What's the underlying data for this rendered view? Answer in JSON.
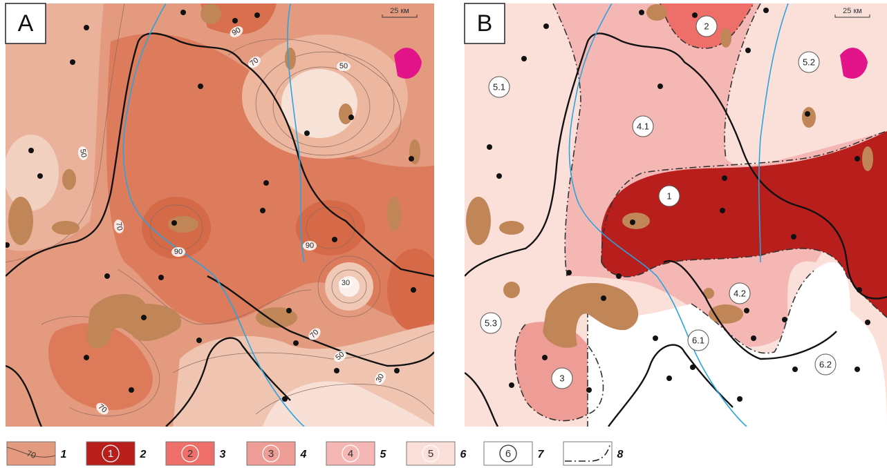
{
  "panels": [
    {
      "label": "A",
      "scale": "25 км",
      "contour_labels": [
        "90",
        "70",
        "50",
        "50",
        "70",
        "90",
        "90",
        "30",
        "70",
        "50",
        "30",
        "70"
      ]
    },
    {
      "label": "B",
      "scale": "25 км",
      "zone_labels": [
        "2",
        "5.1",
        "5.2",
        "4.1",
        "1",
        "4.2",
        "5.3",
        "6.1",
        "6.2",
        "3"
      ]
    }
  ],
  "legend": [
    {
      "symbol": "70",
      "number": "1"
    },
    {
      "symbol": "1",
      "number": "2"
    },
    {
      "symbol": "2",
      "number": "3"
    },
    {
      "symbol": "3",
      "number": "4"
    },
    {
      "symbol": "4",
      "number": "5"
    },
    {
      "symbol": "5",
      "number": "6"
    },
    {
      "symbol": "6",
      "number": "7"
    },
    {
      "number": "8"
    }
  ]
}
